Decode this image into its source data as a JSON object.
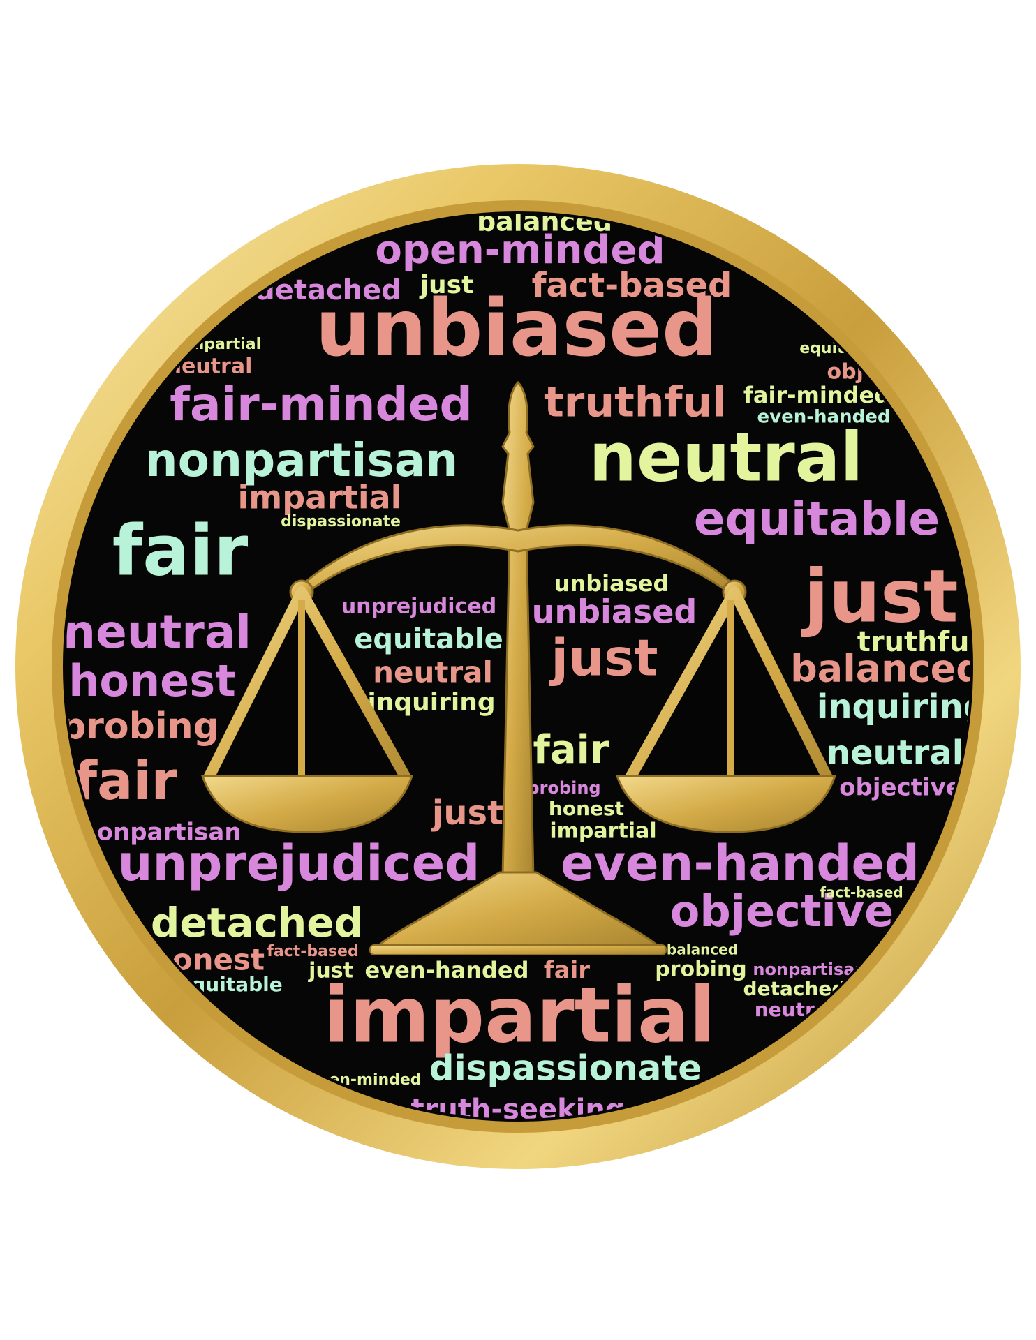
{
  "palette": {
    "salmon": "#e8968a",
    "violet": "#d888dc",
    "mint": "#b8f2d8",
    "lime": "#e2f59e",
    "background": "#060606",
    "gold": "#d9b44e",
    "gold_light": "#f4e39a",
    "gold_dark": "#b08d2f"
  },
  "words": [
    "balanced",
    "open-minded",
    "fact-based",
    "detached",
    "just",
    "unbiased",
    "impartial",
    "neutral",
    "fair-minded",
    "truthful",
    "nonpartisan",
    "neutral",
    "fair-minded",
    "even-handed",
    "fair",
    "impartial",
    "equitable",
    "dispassionate",
    "just",
    "neutral",
    "unprejudiced",
    "unbiased",
    "equitable",
    "just",
    "truthful",
    "honest",
    "inquiring",
    "balanced",
    "probing",
    "neutral",
    "fair",
    "inquiring",
    "fair",
    "neutral",
    "honest",
    "objective",
    "nonpartisan",
    "unprejudiced",
    "even-handed",
    "detached",
    "objective",
    "honest",
    "fact-based",
    "equitable",
    "just",
    "even-handed",
    "probing",
    "fair",
    "impartial",
    "detached",
    "dispassionate",
    "truth-seeking",
    "open-minded",
    "nonpartisan",
    "neutral",
    "fact-based",
    "balanced",
    "objective",
    "equitable",
    "probing",
    "impartial",
    "just",
    "unbiased"
  ]
}
